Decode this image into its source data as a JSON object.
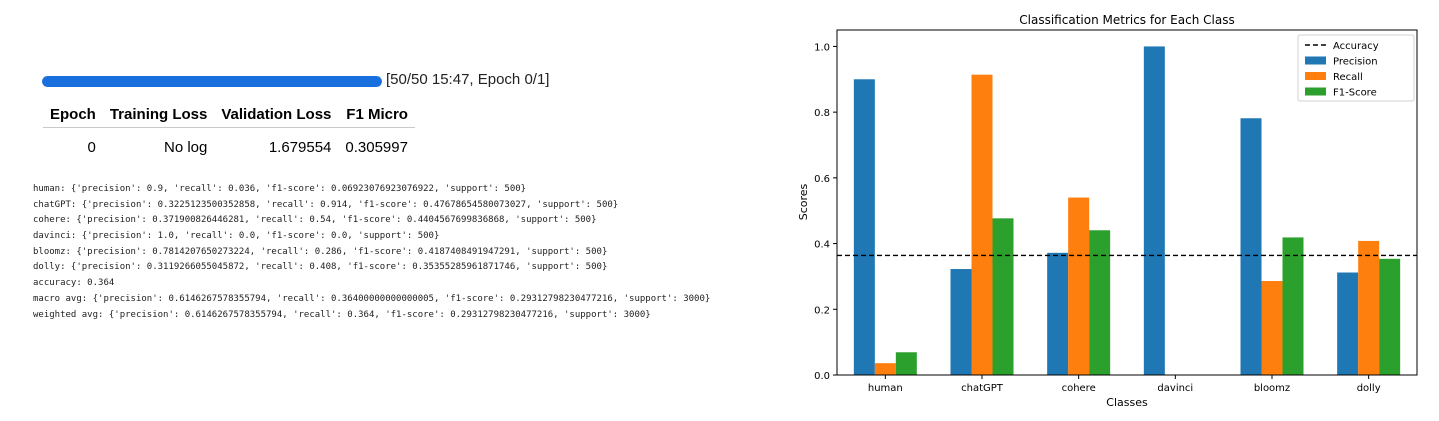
{
  "training": {
    "progress": {
      "current": 50,
      "total": 50,
      "fraction": 1.0,
      "label": "[50/50 15:47, Epoch 0/1]"
    },
    "table": {
      "headers": [
        "Epoch",
        "Training Loss",
        "Validation Loss",
        "F1 Micro"
      ],
      "rows": [
        [
          "0",
          "No log",
          "1.679554",
          "0.305997"
        ]
      ]
    }
  },
  "report_lines": [
    "human: {'precision': 0.9, 'recall': 0.036, 'f1-score': 0.06923076923076922, 'support': 500}",
    "chatGPT: {'precision': 0.3225123500352858, 'recall': 0.914, 'f1-score': 0.47678654580073027, 'support': 500}",
    "cohere: {'precision': 0.371900826446281, 'recall': 0.54, 'f1-score': 0.4404567699836868, 'support': 500}",
    "davinci: {'precision': 1.0, 'recall': 0.0, 'f1-score': 0.0, 'support': 500}",
    "bloomz: {'precision': 0.7814207650273224, 'recall': 0.286, 'f1-score': 0.4187408491947291, 'support': 500}",
    "dolly: {'precision': 0.3119266055045872, 'recall': 0.408, 'f1-score': 0.35355285961871746, 'support': 500}",
    "accuracy: 0.364",
    "macro avg: {'precision': 0.6146267578355794, 'recall': 0.36400000000000005, 'f1-score': 0.29312798230477216, 'support': 3000}",
    "weighted avg: {'precision': 0.6146267578355794, 'recall': 0.364, 'f1-score': 0.29312798230477216, 'support': 3000}"
  ],
  "chart_data": {
    "type": "bar",
    "title": "Classification Metrics for Each Class",
    "xlabel": "Classes",
    "ylabel": "Scores",
    "categories": [
      "human",
      "chatGPT",
      "cohere",
      "davinci",
      "bloomz",
      "dolly"
    ],
    "series": [
      {
        "name": "Precision",
        "color": "#1f77b4",
        "values": [
          0.9,
          0.3225,
          0.3719,
          1.0,
          0.7814,
          0.3119
        ]
      },
      {
        "name": "Recall",
        "color": "#ff7f0e",
        "values": [
          0.036,
          0.914,
          0.54,
          0.0,
          0.286,
          0.408
        ]
      },
      {
        "name": "F1-Score",
        "color": "#2ca02c",
        "values": [
          0.0692,
          0.4768,
          0.4405,
          0.0,
          0.4187,
          0.3536
        ]
      }
    ],
    "reference_line": {
      "name": "Accuracy",
      "value": 0.364,
      "style": "dashed",
      "color": "#000000"
    },
    "ylim": [
      0,
      1.05
    ],
    "yticks": [
      "0.0",
      "0.2",
      "0.4",
      "0.6",
      "0.8",
      "1.0"
    ],
    "ytick_values": [
      0,
      0.2,
      0.4,
      0.6,
      0.8,
      1.0
    ],
    "grid": false,
    "legend": "top-right"
  }
}
